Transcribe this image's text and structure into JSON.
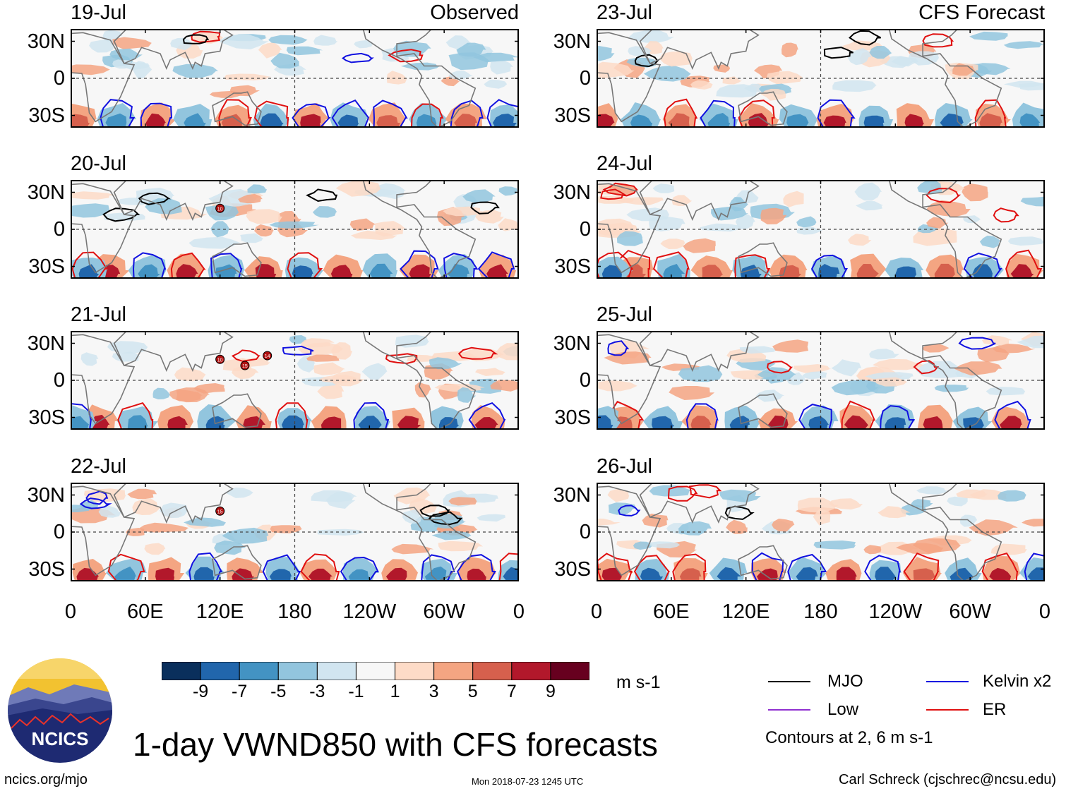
{
  "title": "1-day VWND850 with CFS forecasts",
  "observed_label": "Observed",
  "forecast_label": "CFS Forecast",
  "footer": {
    "left": "ncics.org/mjo",
    "center": "Mon 2018-07-23 1245 UTC",
    "right": "Carl Schreck (cjschrec@ncsu.edu)"
  },
  "logo_text": "NCICS",
  "units": "m s-1",
  "contour_note": "Contours at 2, 6 m s-1",
  "colors": {
    "mjo": "#000000",
    "kelvin": "#1010e0",
    "low": "#9030d0",
    "er": "#e01010",
    "land": "#777777"
  },
  "chart_data": {
    "type": "heatmap",
    "variable": "850-hPa meridional wind anomaly",
    "y_ticks": [
      "30N",
      "0",
      "30S"
    ],
    "x_ticks": [
      "0",
      "60E",
      "120E",
      "180",
      "120W",
      "60W",
      "0"
    ],
    "panels": [
      {
        "date": "19-Jul",
        "group": "Observed",
        "storms": []
      },
      {
        "date": "20-Jul",
        "group": "Observed",
        "storms": [
          "10"
        ]
      },
      {
        "date": "21-Jul",
        "group": "Observed",
        "storms": [
          "10",
          "15",
          "14"
        ]
      },
      {
        "date": "22-Jul",
        "group": "Observed",
        "storms": [
          "15"
        ]
      },
      {
        "date": "23-Jul",
        "group": "CFS Forecast",
        "storms": []
      },
      {
        "date": "24-Jul",
        "group": "CFS Forecast",
        "storms": []
      },
      {
        "date": "25-Jul",
        "group": "CFS Forecast",
        "storms": []
      },
      {
        "date": "26-Jul",
        "group": "CFS Forecast",
        "storms": []
      }
    ],
    "colorbar": {
      "tick_labels": [
        "-9",
        "-7",
        "-5",
        "-3",
        "-1",
        "1",
        "3",
        "5",
        "7",
        "9"
      ],
      "colors": [
        "#0a2f5c",
        "#2166ac",
        "#4393c3",
        "#92c5de",
        "#d1e5f0",
        "#f7f7f7",
        "#fddbc7",
        "#f4a582",
        "#d6604d",
        "#b2182b",
        "#67001f"
      ]
    },
    "legend": [
      {
        "label": "MJO",
        "color": "#000000"
      },
      {
        "label": "Kelvin x2",
        "color": "#1010e0"
      },
      {
        "label": "Low",
        "color": "#9030d0"
      },
      {
        "label": "ER",
        "color": "#e01010"
      }
    ]
  }
}
